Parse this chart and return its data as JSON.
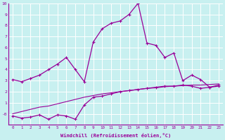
{
  "xlabel": "Windchill (Refroidissement éolien,°C)",
  "x": [
    0,
    1,
    2,
    3,
    4,
    5,
    6,
    7,
    8,
    9,
    10,
    11,
    12,
    13,
    14,
    15,
    16,
    17,
    18,
    19,
    20,
    21,
    22,
    23
  ],
  "line_main": [
    3.1,
    2.9,
    3.2,
    3.5,
    4.0,
    4.5,
    5.1,
    4.0,
    2.9,
    6.5,
    7.7,
    8.2,
    8.4,
    9.0,
    10.0,
    6.4,
    6.2,
    5.1,
    5.5,
    3.0,
    3.5,
    3.1,
    2.4,
    2.6
  ],
  "line_lower": [
    -0.2,
    -0.4,
    -0.3,
    -0.1,
    -0.5,
    -0.1,
    -0.2,
    -0.5,
    0.8,
    1.5,
    1.6,
    1.8,
    2.0,
    2.1,
    2.2,
    2.3,
    2.4,
    2.5,
    2.5,
    2.6,
    2.5,
    2.3,
    2.4,
    2.5
  ],
  "line_trend": [
    0.0,
    0.2,
    0.4,
    0.6,
    0.7,
    0.9,
    1.1,
    1.3,
    1.5,
    1.65,
    1.8,
    1.9,
    2.0,
    2.1,
    2.2,
    2.3,
    2.35,
    2.45,
    2.5,
    2.55,
    2.6,
    2.6,
    2.65,
    2.7
  ],
  "bg_color": "#c8f0f0",
  "line_color": "#990099",
  "grid_color": "#aadddd",
  "ylim_min": -1,
  "ylim_max": 10
}
